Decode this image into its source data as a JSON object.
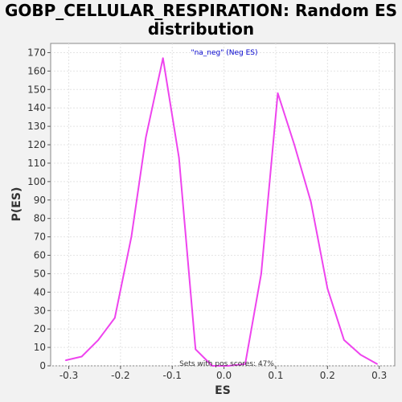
{
  "chart_data": {
    "type": "line",
    "title_line1": "GOBP_CELLULAR_RESPIRATION: Random ES",
    "title_line2": "distribution",
    "xlabel": "ES",
    "ylabel": "P(ES)",
    "xlim": [
      -0.335,
      0.33
    ],
    "ylim": [
      0,
      175
    ],
    "xticks": [
      -0.3,
      -0.2,
      -0.1,
      0.0,
      0.1,
      0.2,
      0.3
    ],
    "xtick_labels": [
      "-0.3",
      "-0.2",
      "-0.1",
      "0.0",
      "0.1",
      "0.2",
      "0.3"
    ],
    "yticks": [
      0,
      10,
      20,
      30,
      40,
      50,
      60,
      70,
      80,
      90,
      100,
      110,
      120,
      130,
      140,
      150,
      160,
      170
    ],
    "grid": true,
    "legend_position": "top-center",
    "series": [
      {
        "name": "\"na_neg\" (Neg ES)",
        "color": "#ee44ee",
        "x": [
          -0.306,
          -0.275,
          -0.243,
          -0.211,
          -0.179,
          -0.151,
          -0.118,
          -0.087,
          -0.055,
          -0.023,
          0.008,
          0.041,
          0.072,
          0.104,
          0.136,
          0.168,
          0.2,
          0.232,
          0.264,
          0.296
        ],
        "y": [
          3,
          5,
          14,
          26,
          70,
          124,
          167,
          113,
          9,
          0,
          0,
          1,
          50,
          148,
          120,
          89,
          42,
          14,
          6,
          1
        ]
      }
    ],
    "annotation": "Sets with pos scores: 47%"
  },
  "colors": {
    "background": "#f2f2f2",
    "plot_background": "#ffffff",
    "series_line": "#ee44ee",
    "legend_text": "#0000cc"
  }
}
